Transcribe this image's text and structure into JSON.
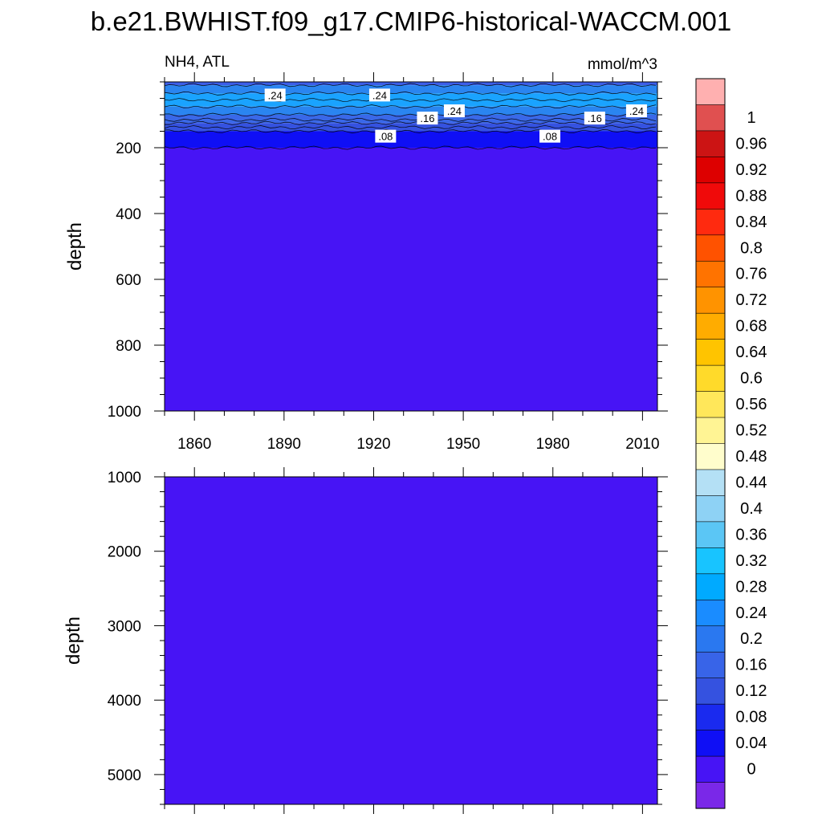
{
  "title": "b.e21.BWHIST.f09_g17.CMIP6-historical-WACCM.001",
  "top_panel": {
    "left_string": "NH4, ATL",
    "right_string": "mmol/m^3"
  },
  "colors": {
    "background_fill": "#4714f5",
    "line": "#000000",
    "label_box": "#ffffff"
  },
  "chart_data": [
    {
      "type": "heatmap",
      "title": "",
      "xlabel": "",
      "ylabel": "depth",
      "xlim": [
        1850,
        2015
      ],
      "ylim": [
        1000,
        0
      ],
      "x_ticks": [
        1860,
        1890,
        1920,
        1950,
        1980,
        2010
      ],
      "y_ticks": [
        200,
        400,
        600,
        800,
        1000
      ],
      "y_tick_labels": [
        "200",
        "400",
        "600",
        "800",
        "1000"
      ],
      "y_minor_step": 50,
      "x_minor_step": 10,
      "depth_bands": [
        {
          "from": 0,
          "to": 10,
          "value": 0.14,
          "color": "#3c5ee8"
        },
        {
          "from": 10,
          "to": 35,
          "value": 0.18,
          "color": "#2a85f0"
        },
        {
          "from": 35,
          "to": 75,
          "value": 0.26,
          "color": "#1aa3ff"
        },
        {
          "from": 75,
          "to": 100,
          "value": 0.22,
          "color": "#2a85f0"
        },
        {
          "from": 100,
          "to": 125,
          "value": 0.17,
          "color": "#3a68e8"
        },
        {
          "from": 125,
          "to": 150,
          "value": 0.13,
          "color": "#3552e0"
        },
        {
          "from": 150,
          "to": 200,
          "value": 0.06,
          "color": "#0f0ff5"
        },
        {
          "from": 200,
          "to": 1000,
          "value": 0.02,
          "color": "#4714f5"
        }
      ],
      "contour_lines": [
        10,
        35,
        55,
        75,
        100,
        115,
        125,
        138,
        150,
        200
      ],
      "contour_labels": [
        {
          "text": ".24",
          "year": 1887,
          "depth": 40
        },
        {
          "text": ".24",
          "year": 1922,
          "depth": 40
        },
        {
          "text": ".16",
          "year": 1938,
          "depth": 110
        },
        {
          "text": ".24",
          "year": 1947,
          "depth": 88
        },
        {
          "text": ".08",
          "year": 1924,
          "depth": 165
        },
        {
          "text": ".08",
          "year": 1979,
          "depth": 165
        },
        {
          "text": ".16",
          "year": 1994,
          "depth": 110
        },
        {
          "text": ".24",
          "year": 2008,
          "depth": 88
        }
      ]
    },
    {
      "type": "heatmap",
      "title": "",
      "xlabel": "",
      "ylabel": "depth",
      "xlim": [
        1850,
        2015
      ],
      "ylim": [
        5400,
        1000
      ],
      "x_ticks": [
        1860,
        1890,
        1920,
        1950,
        1980,
        2010
      ],
      "y_ticks": [
        1000,
        2000,
        3000,
        4000,
        5000
      ],
      "y_tick_labels": [
        "1000",
        "2000",
        "3000",
        "4000",
        "5000"
      ],
      "y_minor_step": 200,
      "x_minor_step": 10,
      "depth_bands": [
        {
          "from": 1000,
          "to": 5400,
          "value": 0.02,
          "color": "#4714f5"
        }
      ]
    }
  ],
  "colorbar": {
    "labels": [
      "1",
      "0.96",
      "0.92",
      "0.88",
      "0.84",
      "0.8",
      "0.76",
      "0.72",
      "0.68",
      "0.64",
      "0.6",
      "0.56",
      "0.52",
      "0.48",
      "0.44",
      "0.4",
      "0.36",
      "0.32",
      "0.28",
      "0.24",
      "0.2",
      "0.16",
      "0.12",
      "0.08",
      "0.04",
      "0"
    ],
    "colors": [
      "#ffb0b0",
      "#e05050",
      "#cc1414",
      "#dd0000",
      "#f00a0a",
      "#ff2a0f",
      "#ff5200",
      "#ff7300",
      "#ff9300",
      "#ffac00",
      "#ffc400",
      "#ffda2a",
      "#ffe75a",
      "#fff494",
      "#fffdcc",
      "#b4e0f5",
      "#8ed2f5",
      "#5bc6f5",
      "#18c4ff",
      "#00aaff",
      "#1a8cff",
      "#2a78f0",
      "#3864e8",
      "#3552e0",
      "#1a2aef",
      "#0f0ff5",
      "#4714f5",
      "#7a28e8"
    ]
  }
}
